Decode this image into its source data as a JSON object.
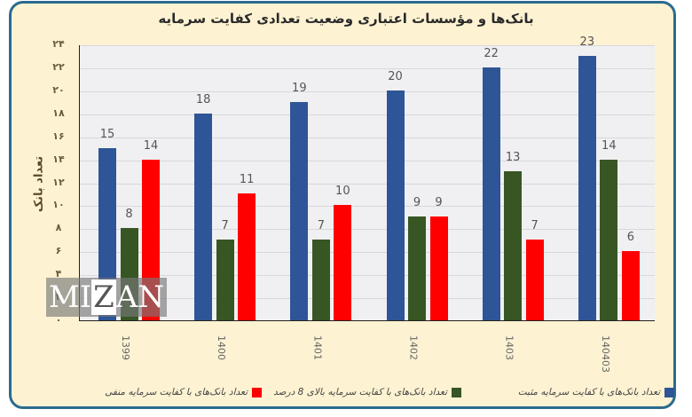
{
  "chart_data": {
    "type": "bar",
    "title": "بانک‌ها و مؤسسات اعتباری وضعیت تعدادی کفایت سرمایه",
    "xlabel": "",
    "ylabel": "تعداد بانک",
    "ylim": [
      0,
      24
    ],
    "yticks": [
      "۰",
      "۲",
      "۴",
      "۶",
      "۸",
      "۱۰",
      "۱۲",
      "۱۴",
      "۱۶",
      "۱۸",
      "۲۰",
      "۲۲",
      "۲۴"
    ],
    "categories": [
      "1399",
      "1400",
      "1401",
      "1402",
      "1403",
      "140403"
    ],
    "series": [
      {
        "name": "تعداد بانک‌های با کفایت سرمایه مثبت",
        "color": "#2e5597",
        "values": [
          15,
          18,
          19,
          20,
          22,
          23
        ]
      },
      {
        "name": "تعداد بانک‌های با کفایت سرمایه بالای 8 درصد",
        "color": "#375623",
        "values": [
          8,
          7,
          7,
          9,
          13,
          14
        ]
      },
      {
        "name": "تعداد بانک‌های با کفایت سرمایه منفی",
        "color": "#ff0000",
        "values": [
          14,
          11,
          10,
          9,
          7,
          6
        ]
      }
    ],
    "grid": true,
    "legend_position": "bottom",
    "data_labels": true
  },
  "watermark": {
    "prefix": "MI",
    "z": "Z",
    "suffix": "AN"
  }
}
